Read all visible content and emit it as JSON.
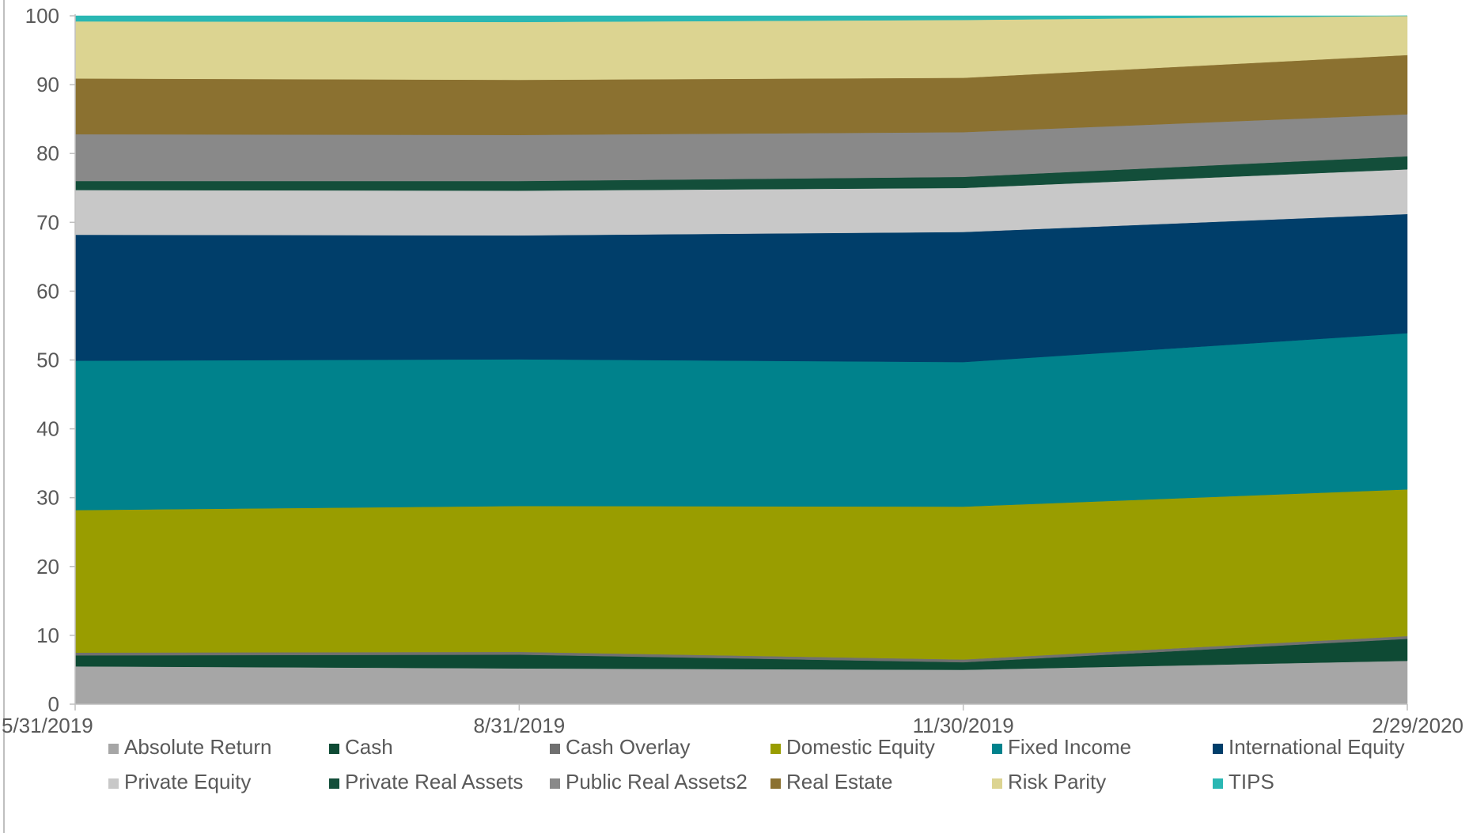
{
  "chart_data": {
    "type": "area",
    "stacked": true,
    "x": [
      "5/31/2019",
      "8/31/2019",
      "11/30/2019",
      "2/29/2020"
    ],
    "ylim": [
      0,
      100
    ],
    "yticks": [
      0,
      10,
      20,
      30,
      40,
      50,
      60,
      70,
      80,
      90,
      100
    ],
    "grid": false,
    "legend_position": "bottom",
    "series": [
      {
        "name": "Absolute Return",
        "color": "#a6a6a6",
        "values": [
          5.5,
          5.2,
          5.0,
          6.3
        ]
      },
      {
        "name": "Cash",
        "color": "#0e4a34",
        "values": [
          1.6,
          2.0,
          1.1,
          3.2
        ]
      },
      {
        "name": "Cash Overlay",
        "color": "#707070",
        "values": [
          0.4,
          0.4,
          0.4,
          0.4
        ]
      },
      {
        "name": "Domestic Equity",
        "color": "#999d00",
        "values": [
          20.7,
          21.2,
          22.2,
          21.3
        ]
      },
      {
        "name": "Fixed Income",
        "color": "#00828c",
        "values": [
          21.7,
          21.3,
          21.0,
          22.7
        ]
      },
      {
        "name": "International Equity",
        "color": "#003e6a",
        "values": [
          18.3,
          18.0,
          18.9,
          17.3
        ]
      },
      {
        "name": "Private Equity",
        "color": "#c8c8c8",
        "values": [
          6.5,
          6.5,
          6.4,
          6.5
        ]
      },
      {
        "name": "Private Real Assets",
        "color": "#134e3a",
        "values": [
          1.3,
          1.4,
          1.6,
          1.9
        ]
      },
      {
        "name": "Public Real Assets2",
        "color": "#898989",
        "values": [
          6.8,
          6.7,
          6.5,
          6.1
        ]
      },
      {
        "name": "Real Estate",
        "color": "#8b7130",
        "values": [
          8.1,
          8.0,
          7.9,
          8.6
        ]
      },
      {
        "name": "Risk Parity",
        "color": "#dcd491",
        "values": [
          8.3,
          8.4,
          8.4,
          5.7
        ]
      },
      {
        "name": "TIPS",
        "color": "#2ab7b3",
        "values": [
          0.8,
          0.9,
          0.6,
          0.0
        ]
      }
    ]
  }
}
